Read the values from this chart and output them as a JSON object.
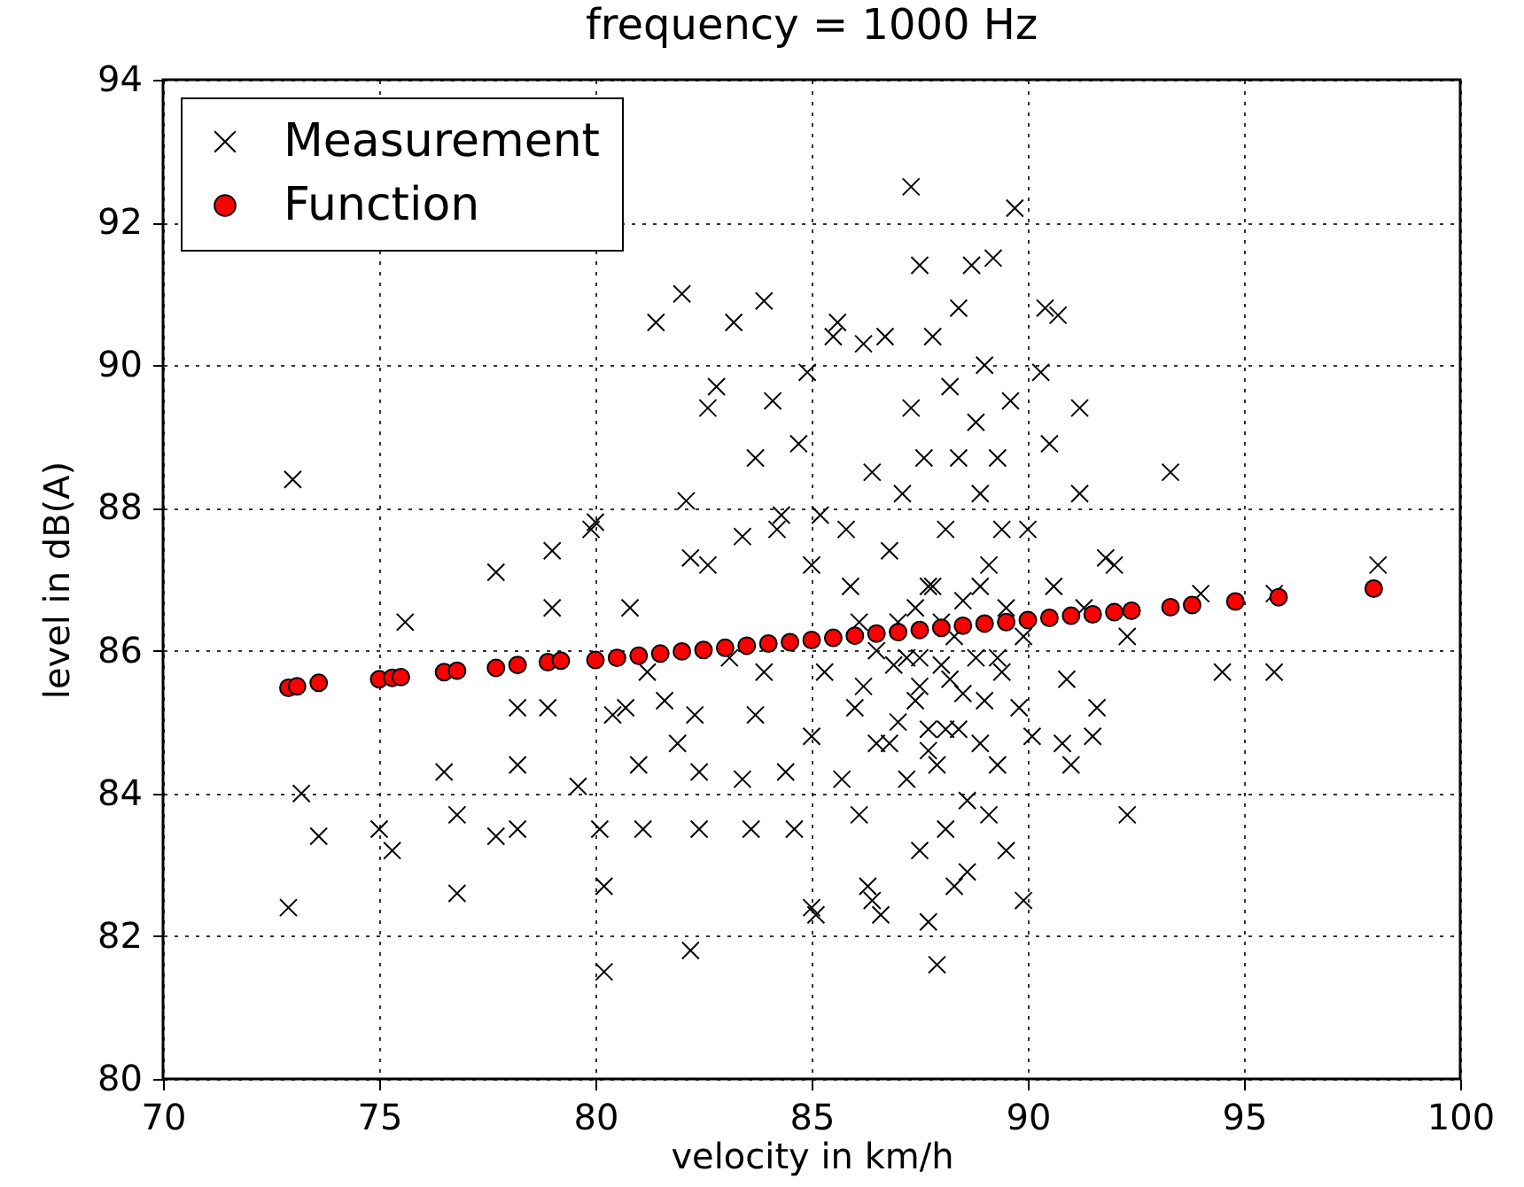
{
  "chart_data": {
    "type": "scatter",
    "title": "frequency = 1000 Hz",
    "xlabel": "velocity in km/h",
    "ylabel": "level in dB(A)",
    "xlim": [
      70,
      100
    ],
    "xticks": [
      70,
      75,
      80,
      85,
      90,
      95,
      100
    ],
    "ylim": [
      80,
      94
    ],
    "yticks": [
      80,
      82,
      84,
      86,
      88,
      90,
      92,
      94
    ],
    "grid": true,
    "legend": "top left",
    "series": [
      {
        "name": "Measurement",
        "type": "scatter",
        "marker": "cross",
        "color": "#000000",
        "x": [
          73.0,
          72.9,
          73.2,
          73.6,
          75.0,
          75.3,
          75.6,
          76.5,
          76.8,
          76.8,
          77.7,
          77.7,
          78.2,
          78.2,
          78.2,
          79.0,
          79.0,
          78.9,
          79.6,
          79.9,
          80.0,
          80.1,
          80.2,
          80.2,
          80.4,
          80.7,
          80.8,
          81.2,
          81.0,
          81.1,
          81.4,
          81.6,
          81.9,
          82.0,
          82.1,
          82.2,
          82.3,
          82.2,
          82.4,
          82.4,
          82.6,
          82.6,
          82.8,
          83.2,
          83.1,
          83.4,
          83.4,
          83.6,
          83.7,
          83.7,
          83.9,
          84.1,
          83.9,
          84.2,
          84.3,
          84.4,
          84.6,
          84.7,
          84.9,
          85.0,
          85.0,
          85.0,
          85.1,
          85.2,
          85.3,
          85.5,
          85.6,
          85.7,
          85.8,
          85.9,
          86.0,
          86.1,
          86.1,
          86.2,
          86.3,
          86.4,
          86.4,
          86.5,
          86.6,
          86.7,
          86.8,
          86.9,
          87.0,
          87.1,
          87.2,
          87.3,
          87.3,
          87.4,
          87.5,
          87.5,
          87.5,
          87.6,
          87.7,
          87.7,
          87.7,
          87.8,
          87.9,
          87.9,
          88.0,
          88.1,
          88.1,
          88.2,
          88.2,
          88.3,
          88.4,
          88.4,
          88.4,
          88.5,
          88.6,
          88.6,
          88.7,
          88.8,
          88.8,
          88.9,
          88.9,
          89.0,
          89.0,
          89.1,
          89.1,
          89.2,
          89.3,
          89.3,
          89.4,
          89.4,
          89.5,
          89.5,
          89.6,
          89.7,
          89.8,
          89.9,
          89.9,
          90.0,
          90.1,
          90.3,
          90.4,
          90.5,
          90.6,
          90.7,
          90.8,
          90.9,
          91.0,
          91.2,
          91.2,
          91.3,
          91.5,
          91.6,
          91.8,
          92.0,
          92.3,
          92.3,
          93.3,
          94.0,
          94.5,
          95.7,
          95.7,
          98.1,
          87.0,
          87.5,
          88.0,
          88.5,
          87.2,
          87.8,
          86.5,
          88.3,
          87.7,
          86.8,
          88.9,
          89.3,
          86.2,
          87.4,
          88.1
        ],
        "values": [
          88.4,
          82.4,
          84.0,
          83.4,
          83.5,
          83.2,
          86.4,
          84.3,
          83.7,
          82.6,
          87.1,
          83.4,
          83.5,
          84.4,
          85.2,
          86.6,
          87.4,
          85.2,
          84.1,
          87.7,
          87.8,
          83.5,
          82.7,
          81.5,
          85.1,
          85.2,
          86.6,
          85.7,
          84.4,
          83.5,
          90.6,
          85.3,
          84.7,
          91.0,
          88.1,
          87.3,
          85.1,
          81.8,
          84.3,
          83.5,
          87.2,
          89.4,
          89.7,
          90.6,
          85.9,
          84.2,
          87.6,
          83.5,
          85.1,
          88.7,
          90.9,
          89.5,
          85.7,
          87.7,
          87.9,
          84.3,
          83.5,
          88.9,
          89.9,
          84.8,
          87.2,
          82.4,
          82.3,
          87.9,
          85.7,
          90.4,
          90.6,
          84.2,
          87.7,
          86.9,
          85.2,
          86.4,
          83.7,
          90.3,
          82.7,
          88.5,
          82.5,
          84.7,
          82.3,
          90.4,
          87.4,
          85.8,
          86.4,
          88.2,
          84.2,
          92.5,
          89.4,
          85.3,
          85.9,
          91.4,
          83.2,
          88.7,
          84.9,
          86.9,
          82.2,
          90.4,
          84.4,
          81.6,
          86.4,
          87.7,
          83.5,
          89.7,
          85.6,
          82.7,
          90.8,
          84.9,
          88.7,
          86.7,
          83.9,
          82.9,
          91.4,
          85.9,
          89.2,
          84.7,
          88.2,
          90.0,
          85.3,
          83.7,
          87.2,
          91.5,
          84.4,
          88.7,
          85.7,
          87.7,
          83.2,
          86.6,
          89.5,
          92.2,
          85.2,
          86.2,
          82.5,
          87.7,
          84.8,
          89.9,
          90.8,
          88.9,
          86.9,
          90.7,
          84.7,
          85.6,
          84.4,
          89.4,
          88.2,
          86.6,
          84.8,
          85.2,
          87.3,
          87.2,
          86.2,
          83.7,
          88.5,
          86.8,
          85.7,
          86.8,
          85.7,
          87.2,
          85.0,
          85.5,
          85.8,
          85.4,
          85.9,
          86.9,
          86.0,
          86.2,
          84.6,
          84.7,
          86.9,
          85.9,
          85.5,
          86.6,
          84.9
        ]
      },
      {
        "name": "Function",
        "type": "scatter",
        "marker": "circle",
        "color": "#ff0000",
        "x": [
          72.9,
          73.1,
          73.6,
          75.0,
          75.3,
          75.5,
          76.5,
          76.8,
          77.7,
          78.2,
          78.9,
          79.2,
          80.0,
          80.5,
          81.0,
          81.5,
          82.0,
          82.5,
          83.0,
          83.5,
          84.0,
          84.5,
          85.0,
          85.5,
          86.0,
          86.5,
          87.0,
          87.5,
          88.0,
          88.5,
          89.0,
          89.5,
          90.0,
          90.5,
          91.0,
          91.5,
          92.0,
          92.4,
          93.3,
          93.8,
          94.8,
          95.8,
          98.0
        ],
        "values": [
          85.48,
          85.5,
          85.55,
          85.6,
          85.62,
          85.63,
          85.7,
          85.72,
          85.76,
          85.8,
          85.84,
          85.86,
          85.87,
          85.9,
          85.93,
          85.96,
          85.99,
          86.01,
          86.04,
          86.07,
          86.1,
          86.12,
          86.15,
          86.18,
          86.21,
          86.24,
          86.26,
          86.29,
          86.32,
          86.35,
          86.38,
          86.4,
          86.43,
          86.46,
          86.49,
          86.51,
          86.54,
          86.56,
          86.61,
          86.64,
          86.69,
          86.75,
          86.87
        ]
      }
    ]
  }
}
